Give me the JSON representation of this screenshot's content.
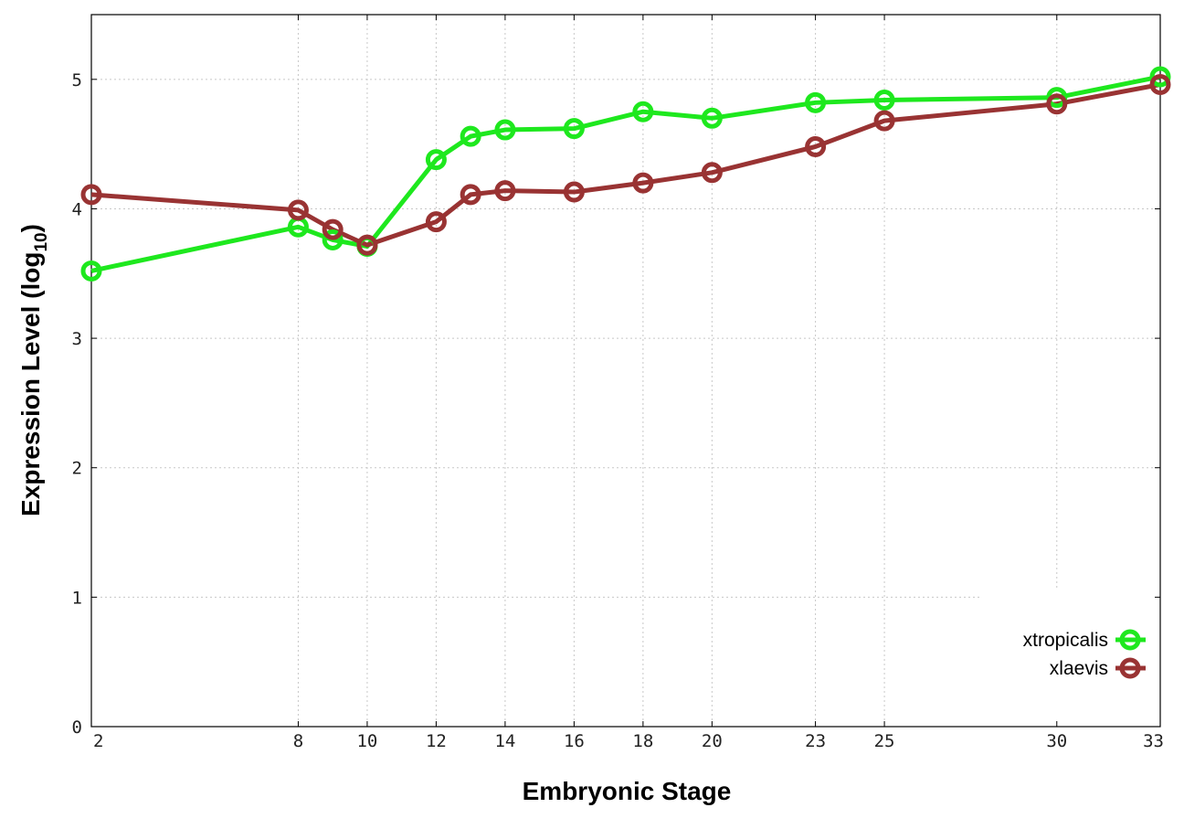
{
  "chart_data": {
    "type": "line",
    "xlabel": "Embryonic Stage",
    "ylabel_main": "Expression Level (log",
    "ylabel_sub": "10",
    "ylabel_close": ")",
    "xlim": [
      2,
      33
    ],
    "ylim": [
      0,
      5.5
    ],
    "xticks": [
      2,
      8,
      10,
      12,
      14,
      16,
      18,
      20,
      23,
      25,
      30,
      33
    ],
    "yticks": [
      0,
      1,
      2,
      3,
      4,
      5
    ],
    "grid": true,
    "legend_position": "bottom-right",
    "series": [
      {
        "name": "xtropicalis",
        "color": "#1ee81e",
        "x": [
          2,
          8,
          9,
          10,
          12,
          13,
          14,
          16,
          18,
          20,
          23,
          25,
          30,
          33
        ],
        "y": [
          3.52,
          3.86,
          3.76,
          3.71,
          4.38,
          4.56,
          4.61,
          4.62,
          4.75,
          4.7,
          4.82,
          4.84,
          4.86,
          5.02
        ]
      },
      {
        "name": "xlaevis",
        "color": "#993333",
        "x": [
          2,
          8,
          9,
          10,
          12,
          13,
          14,
          16,
          18,
          20,
          23,
          25,
          30,
          33
        ],
        "y": [
          4.11,
          3.99,
          3.84,
          3.72,
          3.9,
          4.11,
          4.14,
          4.13,
          4.2,
          4.28,
          4.48,
          4.68,
          4.81,
          4.96
        ]
      }
    ]
  }
}
